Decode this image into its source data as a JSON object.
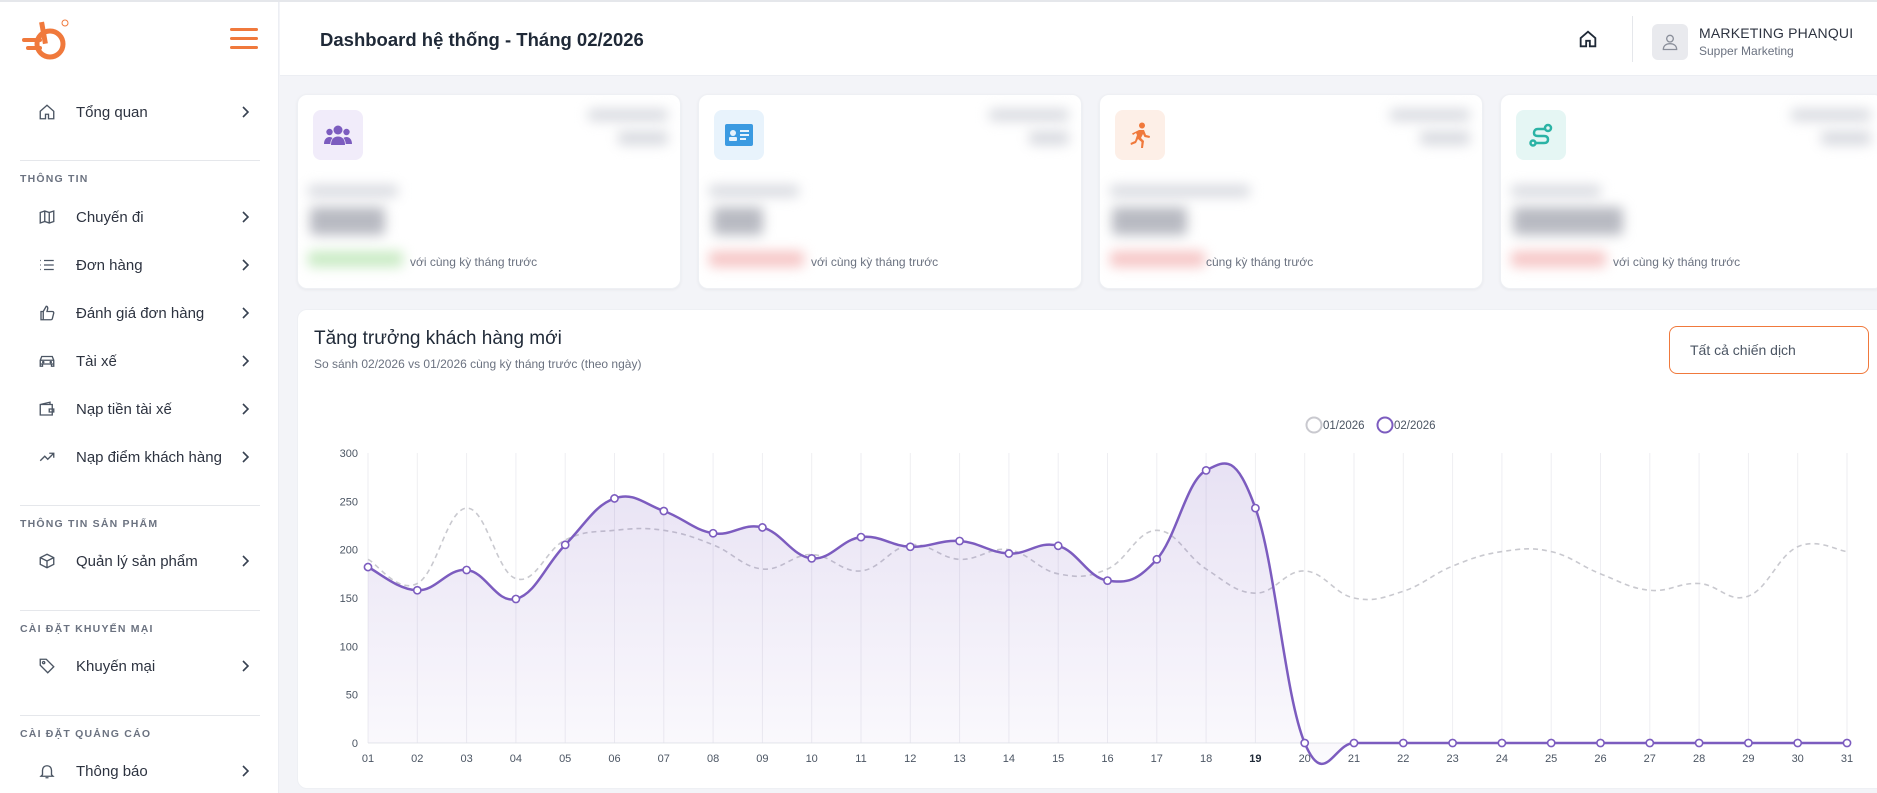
{
  "sidebar": {
    "items": [
      {
        "label": "Tổng quan"
      },
      {
        "label": "Chuyến đi"
      },
      {
        "label": "Đơn hàng"
      },
      {
        "label": "Đánh giá đơn hàng"
      },
      {
        "label": "Tài xế"
      },
      {
        "label": "Nạp tiền tài xế"
      },
      {
        "label": "Nạp điểm khách hàng"
      },
      {
        "label": "Quản lý sản phẩm"
      },
      {
        "label": "Khuyến mại"
      },
      {
        "label": "Thông báo"
      }
    ],
    "sections": {
      "info": "THÔNG TIN",
      "product": "THÔNG TIN SẢN PHẨM",
      "promo": "CÀI ĐẶT KHUYẾN MẠI",
      "ads": "CÀI ĐẶT QUẢNG CÁO"
    }
  },
  "header": {
    "title": "Dashboard hệ thống - Tháng 02/2026",
    "user_name": "MARKETING PHANQUI",
    "user_role": "Supper Marketing"
  },
  "cards": [
    {
      "icon": "users-icon",
      "compare": "với cùng kỳ tháng trước",
      "color": "#7c5cbf",
      "bg": "#f1ecfa"
    },
    {
      "icon": "id-card-icon",
      "compare": "với cùng kỳ tháng trước",
      "color": "#3b9ae1",
      "bg": "#e8f3fc"
    },
    {
      "icon": "running-icon",
      "compare": "cùng kỳ tháng trước",
      "color": "#f0793c",
      "bg": "#fdefe7"
    },
    {
      "icon": "route-icon",
      "compare": "với cùng kỳ tháng trước",
      "color": "#2bb3a5",
      "bg": "#e5f6f4"
    }
  ],
  "chart_section": {
    "title": "Tăng trưởng khách hàng mới",
    "subtitle": "So sánh 02/2026 vs 01/2026 cùng kỳ tháng trước (theo ngày)",
    "campaign_filter": "Tất cả chiến dịch"
  },
  "chart_data": {
    "type": "line",
    "categories": [
      "01",
      "02",
      "03",
      "04",
      "05",
      "06",
      "07",
      "08",
      "09",
      "10",
      "11",
      "12",
      "13",
      "14",
      "15",
      "16",
      "17",
      "18",
      "19",
      "20",
      "21",
      "22",
      "23",
      "24",
      "25",
      "26",
      "27",
      "28",
      "29",
      "30",
      "31"
    ],
    "ylim": [
      0,
      300
    ],
    "yticks": [
      0,
      50,
      100,
      150,
      200,
      250,
      300
    ],
    "highlight_category": "19",
    "grid": true,
    "legend_position": "top-center",
    "series": [
      {
        "name": "01/2026",
        "color": "#c9c9cf",
        "style": "dashed",
        "markers": false,
        "values": [
          190,
          165,
          243,
          170,
          210,
          220,
          220,
          205,
          180,
          195,
          178,
          205,
          190,
          200,
          175,
          180,
          220,
          180,
          155,
          178,
          150,
          157,
          183,
          198,
          198,
          175,
          158,
          165,
          152,
          203,
          198
        ]
      },
      {
        "name": "02/2026",
        "color": "#7c5cbf",
        "style": "solid",
        "markers": true,
        "fill": true,
        "values": [
          182,
          158,
          179,
          149,
          205,
          253,
          240,
          217,
          223,
          191,
          213,
          203,
          209,
          196,
          204,
          168,
          190,
          282,
          243,
          0,
          0,
          0,
          0,
          0,
          0,
          0,
          0,
          0,
          0,
          0,
          0
        ]
      }
    ]
  }
}
